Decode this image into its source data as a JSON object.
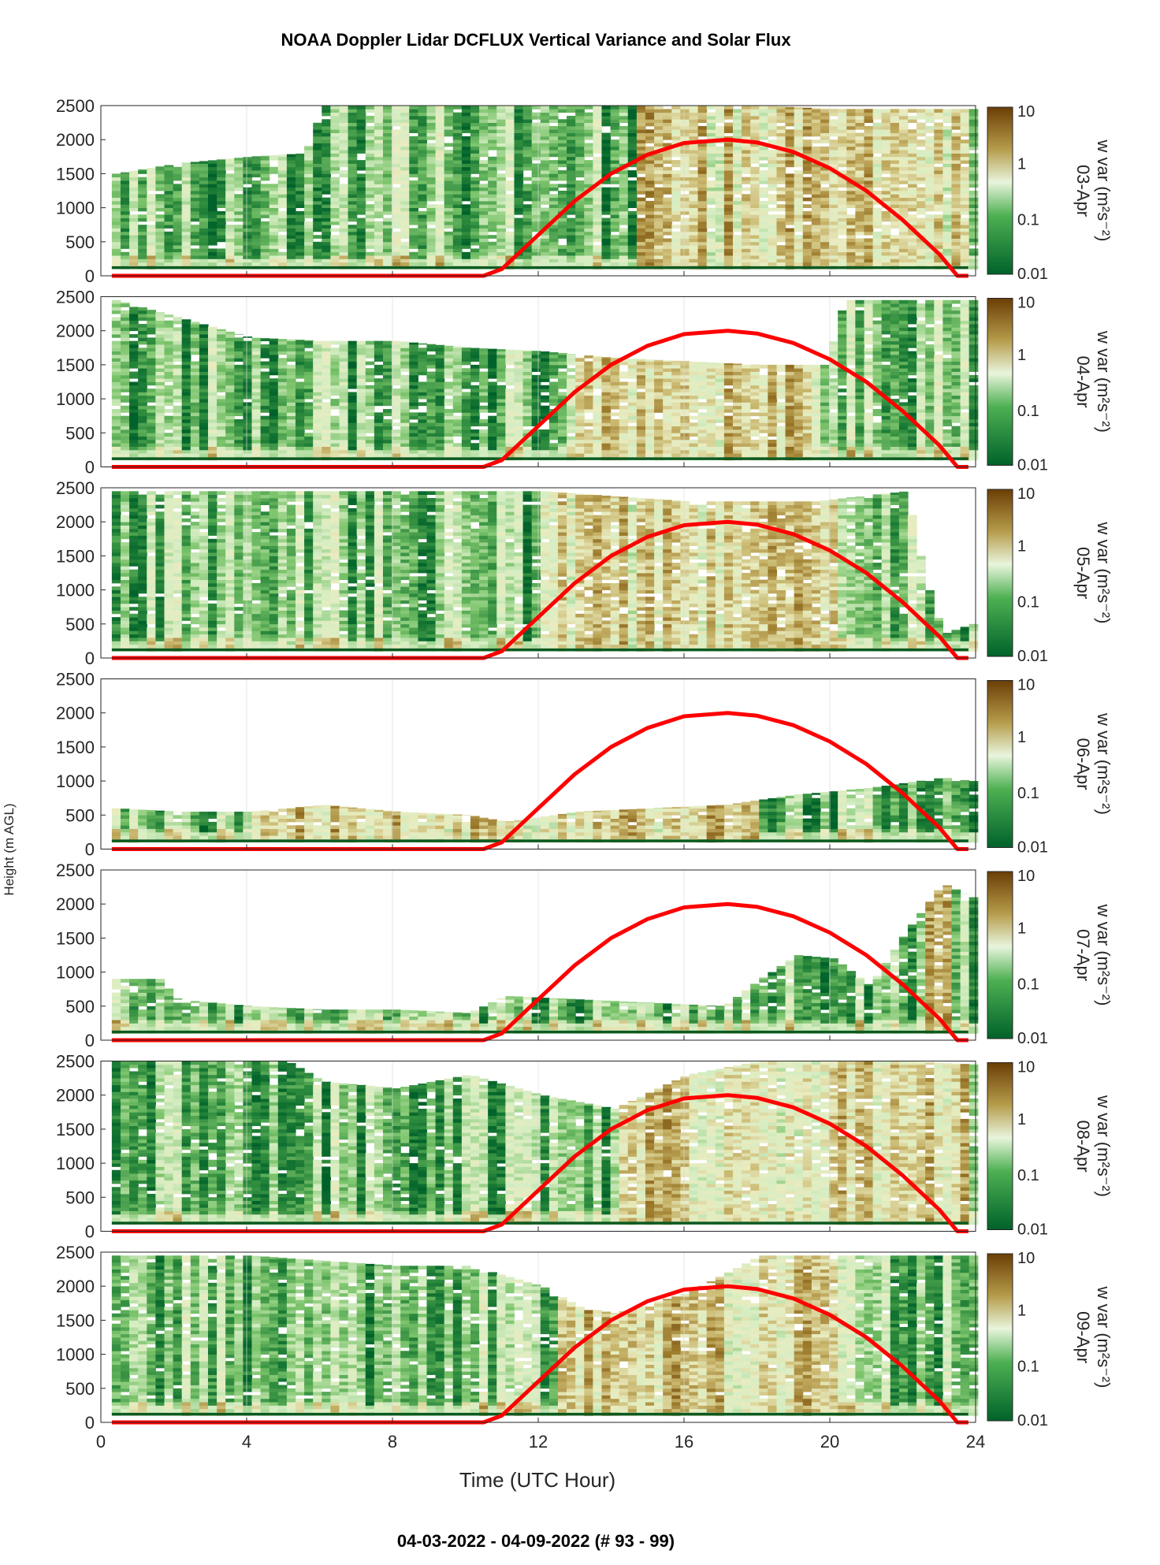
{
  "title": "NOAA Doppler Lidar DCFLUX Vertical Variance and Solar Flux",
  "footer": "04-03-2022 - 04-09-2022   (# 93 - 99)",
  "colors": {
    "variance_low": "#00622a",
    "variance_mid": "#e6f5da",
    "variance_high": "#7a4b06",
    "solar_flux": "#ff0000",
    "baseline": "#0b5a22"
  },
  "chart_data": {
    "type": "heatmap",
    "title": "NOAA Doppler Lidar DCFLUX Vertical Variance and Solar Flux",
    "xlabel": "Time (UTC Hour)",
    "ylabel": "Height (m AGL)",
    "xlim": [
      0,
      24
    ],
    "ylim": [
      0,
      2500
    ],
    "x_ticks": [
      "0",
      "4",
      "8",
      "12",
      "16",
      "20",
      "24"
    ],
    "y_ticks": [
      "0",
      "500",
      "1000",
      "1500",
      "2000",
      "2500"
    ],
    "colorbar": {
      "label": "w var (m²s⁻²)",
      "scale": "log",
      "range": [
        0.01,
        10
      ],
      "ticks": [
        "0.01",
        "0.1",
        "1",
        "10"
      ]
    },
    "grid": true,
    "panels": [
      {
        "date": "03-Apr",
        "cbar_label": "w var (m²s⁻²)",
        "cloud_top_m": [
          [
            0.3,
            1500
          ],
          [
            2,
            1650
          ],
          [
            4,
            1750
          ],
          [
            5.5,
            1800
          ],
          [
            6,
            2500
          ],
          [
            8,
            2500
          ],
          [
            10,
            2500
          ],
          [
            12,
            2500
          ],
          [
            14,
            2500
          ],
          [
            16,
            2500
          ],
          [
            18,
            2500
          ],
          [
            20,
            2450
          ],
          [
            22,
            2450
          ],
          [
            23.8,
            2450
          ]
        ],
        "warm_hours": [
          14.5,
          23.8
        ]
      },
      {
        "date": "04-Apr",
        "cbar_label": "w var (m²s⁻²)",
        "cloud_top_m": [
          [
            0.3,
            2450
          ],
          [
            2,
            2200
          ],
          [
            4,
            1900
          ],
          [
            6,
            1850
          ],
          [
            8,
            1850
          ],
          [
            10,
            1750
          ],
          [
            12,
            1700
          ],
          [
            14,
            1600
          ],
          [
            16,
            1550
          ],
          [
            18,
            1500
          ],
          [
            19.8,
            1500
          ],
          [
            20.3,
            2450
          ],
          [
            23.8,
            2450
          ]
        ],
        "warm_hours": [
          13,
          19.5
        ]
      },
      {
        "date": "05-Apr",
        "cbar_label": "w var (m²s⁻²)",
        "cloud_top_m": [
          [
            0.3,
            2450
          ],
          [
            6,
            2450
          ],
          [
            12,
            2450
          ],
          [
            16,
            2300
          ],
          [
            19.5,
            2300
          ],
          [
            22,
            2450
          ],
          [
            22.5,
            1200
          ],
          [
            23,
            350
          ],
          [
            23.8,
            500
          ]
        ],
        "warm_hours": [
          12,
          20
        ]
      },
      {
        "date": "06-Apr",
        "cbar_label": "w var (m²s⁻²)",
        "cloud_top_m": [
          [
            0.3,
            600
          ],
          [
            2,
            550
          ],
          [
            4,
            550
          ],
          [
            6,
            650
          ],
          [
            8,
            550
          ],
          [
            10,
            500
          ],
          [
            11,
            400
          ],
          [
            13,
            550
          ],
          [
            15,
            600
          ],
          [
            17,
            650
          ],
          [
            19,
            800
          ],
          [
            21,
            900
          ],
          [
            23,
            1050
          ],
          [
            23.8,
            1000
          ]
        ],
        "warm_hours": [
          4,
          18
        ]
      },
      {
        "date": "07-Apr",
        "cbar_label": "w var (m²s⁻²)",
        "cloud_top_m": [
          [
            0.3,
            900
          ],
          [
            1.5,
            900
          ],
          [
            2,
            600
          ],
          [
            4,
            500
          ],
          [
            6,
            450
          ],
          [
            8,
            450
          ],
          [
            10,
            400
          ],
          [
            11,
            650
          ],
          [
            13,
            600
          ],
          [
            15,
            550
          ],
          [
            17,
            500
          ],
          [
            18,
            900
          ],
          [
            19,
            1250
          ],
          [
            20,
            1200
          ],
          [
            21,
            800
          ],
          [
            22,
            1600
          ],
          [
            23,
            2300
          ],
          [
            23.8,
            2100
          ]
        ],
        "warm_hours": [
          22.5,
          23.3
        ]
      },
      {
        "date": "08-Apr",
        "cbar_label": "w var (m²s⁻²)",
        "cloud_top_m": [
          [
            0.3,
            2500
          ],
          [
            5,
            2500
          ],
          [
            6,
            2200
          ],
          [
            8,
            2100
          ],
          [
            10,
            2300
          ],
          [
            12,
            2000
          ],
          [
            14,
            1800
          ],
          [
            16,
            2300
          ],
          [
            18,
            2500
          ],
          [
            20,
            2500
          ],
          [
            22,
            2500
          ],
          [
            23.8,
            2450
          ]
        ],
        "warm_hours": [
          14,
          23.8
        ]
      },
      {
        "date": "09-Apr",
        "cbar_label": "w var (m²s⁻²)",
        "cloud_top_m": [
          [
            0.3,
            2450
          ],
          [
            4,
            2450
          ],
          [
            8,
            2300
          ],
          [
            10,
            2300
          ],
          [
            12,
            2000
          ],
          [
            13,
            1700
          ],
          [
            14,
            1600
          ],
          [
            16,
            1900
          ],
          [
            18,
            2450
          ],
          [
            20,
            2450
          ],
          [
            22,
            2450
          ],
          [
            23.8,
            2450
          ]
        ],
        "warm_hours": [
          12.5,
          20
        ]
      }
    ],
    "solar_flux_curve": {
      "hours": [
        0.3,
        10.5,
        11,
        12,
        13,
        14,
        15,
        16,
        17.2,
        18,
        19,
        20,
        21,
        22,
        23,
        23.5,
        23.8
      ],
      "scaled_height_m": [
        0,
        0,
        100,
        600,
        1100,
        1500,
        1780,
        1950,
        2000,
        1960,
        1820,
        1580,
        1250,
        820,
        320,
        0,
        0
      ]
    },
    "boundary_line_m": 120
  }
}
